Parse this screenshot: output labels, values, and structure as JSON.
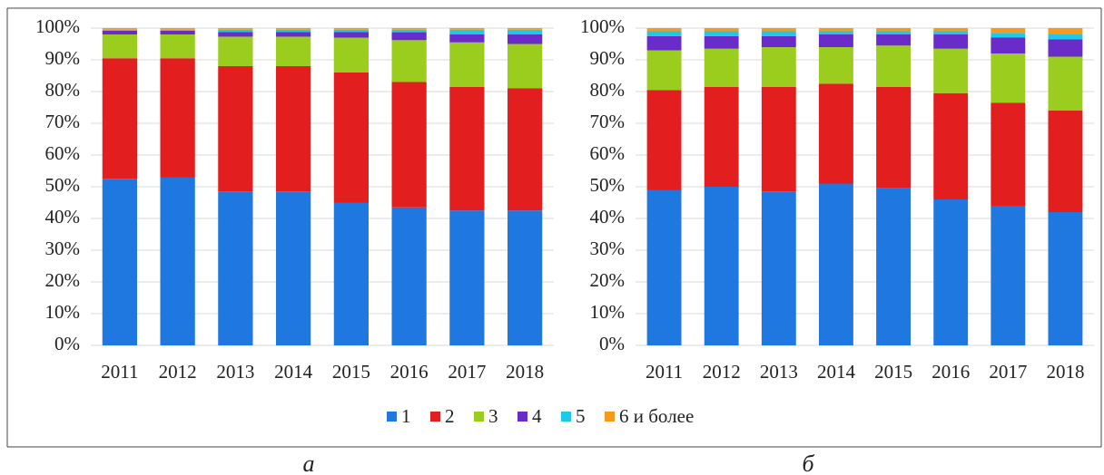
{
  "legend": [
    {
      "name": "1",
      "color": "#1f77e0"
    },
    {
      "name": "2",
      "color": "#e31e1e"
    },
    {
      "name": "3",
      "color": "#9acd1e"
    },
    {
      "name": "4",
      "color": "#6a2cc8"
    },
    {
      "name": "5",
      "color": "#1ec8e8"
    },
    {
      "name": "6 и более",
      "color": "#f59a1e"
    }
  ],
  "chart_data": [
    {
      "type": "bar",
      "stacked": true,
      "label": "а",
      "categories": [
        "2011",
        "2012",
        "2013",
        "2014",
        "2015",
        "2016",
        "2017",
        "2018"
      ],
      "ylim": [
        0,
        100
      ],
      "yticks": [
        {
          "value": 0,
          "label": "0%"
        },
        {
          "value": 10,
          "label": "10%"
        },
        {
          "value": 20,
          "label": "20%"
        },
        {
          "value": 30,
          "label": "30%"
        },
        {
          "value": 40,
          "label": "40%"
        },
        {
          "value": 50,
          "label": "50%"
        },
        {
          "value": 60,
          "label": "60%"
        },
        {
          "value": 70,
          "label": "70%"
        },
        {
          "value": 80,
          "label": "80%"
        },
        {
          "value": 90,
          "label": "90%"
        },
        {
          "value": 100,
          "label": "100%"
        }
      ],
      "grid": true,
      "series": [
        {
          "values": [
            52.5,
            53,
            48.5,
            48.5,
            45,
            43.5,
            42.5,
            42.5
          ]
        },
        {
          "values": [
            38,
            37.5,
            39.5,
            39.5,
            41,
            39.5,
            39,
            38.5
          ]
        },
        {
          "values": [
            7.5,
            7.5,
            9.3,
            9.3,
            11,
            13.2,
            14,
            14
          ]
        },
        {
          "values": [
            1.2,
            1.2,
            1.5,
            1.5,
            1.8,
            2.5,
            2.5,
            3
          ]
        },
        {
          "values": [
            0.3,
            0.3,
            0.7,
            0.7,
            0.7,
            0.8,
            1.5,
            1.5
          ]
        },
        {
          "values": [
            0.5,
            0.5,
            0.5,
            0.5,
            0.5,
            0.5,
            0.5,
            0.5
          ]
        }
      ]
    },
    {
      "type": "bar",
      "stacked": true,
      "label": "б",
      "categories": [
        "2011",
        "2012",
        "2013",
        "2014",
        "2015",
        "2016",
        "2017",
        "2018"
      ],
      "ylim": [
        0,
        100
      ],
      "yticks": [
        {
          "value": 0,
          "label": "0%"
        },
        {
          "value": 10,
          "label": "10%"
        },
        {
          "value": 20,
          "label": "20%"
        },
        {
          "value": 30,
          "label": "30%"
        },
        {
          "value": 40,
          "label": "40%"
        },
        {
          "value": 50,
          "label": "50%"
        },
        {
          "value": 60,
          "label": "60%"
        },
        {
          "value": 70,
          "label": "70%"
        },
        {
          "value": 80,
          "label": "80%"
        },
        {
          "value": 90,
          "label": "90%"
        },
        {
          "value": 100,
          "label": "100%"
        }
      ],
      "grid": true,
      "series": [
        {
          "values": [
            49,
            50,
            48.5,
            51,
            49.5,
            46,
            44,
            42
          ]
        },
        {
          "values": [
            31.5,
            31.5,
            33,
            31.5,
            32,
            33.5,
            32.5,
            32
          ]
        },
        {
          "values": [
            12.5,
            12,
            12.5,
            11.5,
            13,
            14,
            15.5,
            17
          ]
        },
        {
          "values": [
            4.5,
            4,
            3.5,
            4,
            3.5,
            4.5,
            5,
            5.5
          ]
        },
        {
          "values": [
            1.5,
            1.5,
            1.5,
            1,
            1,
            1,
            1.5,
            1.5
          ]
        },
        {
          "values": [
            1,
            1,
            1,
            1,
            1,
            1,
            1.5,
            2
          ]
        }
      ]
    }
  ]
}
